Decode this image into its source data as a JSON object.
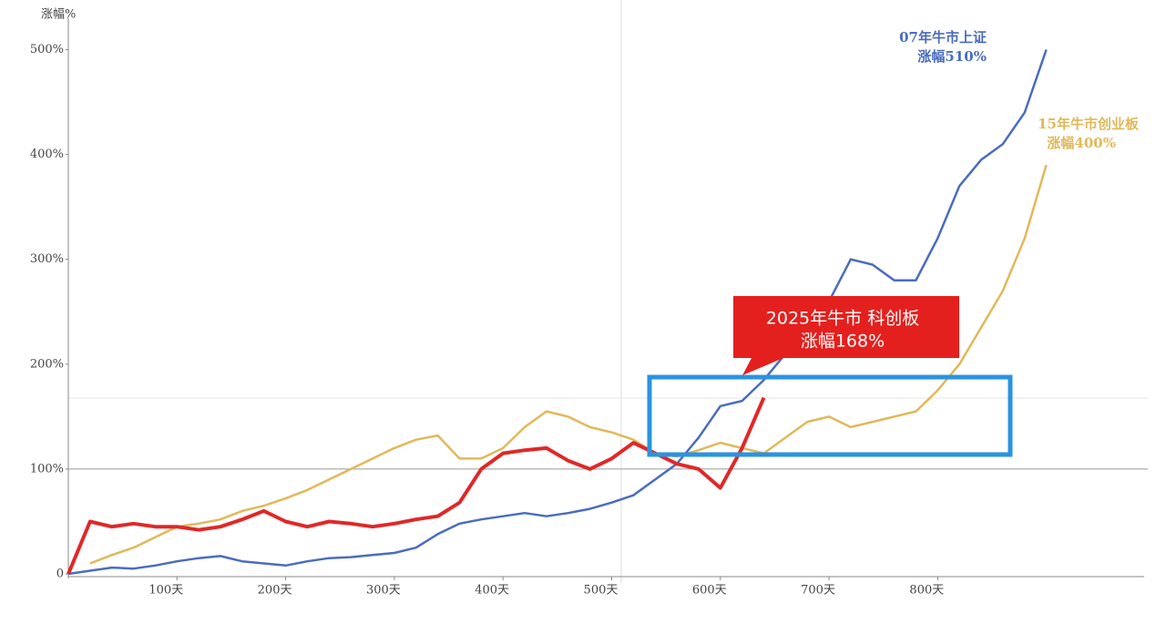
{
  "chart_data": {
    "type": "line",
    "y_label": "涨幅%",
    "x": [
      0,
      20,
      40,
      60,
      80,
      100,
      120,
      140,
      160,
      180,
      200,
      220,
      240,
      260,
      280,
      300,
      320,
      340,
      360,
      380,
      400,
      420,
      440,
      460,
      480,
      500,
      520,
      540,
      560,
      580,
      600,
      620,
      640,
      660,
      680,
      700,
      720,
      740,
      760,
      780,
      800,
      820,
      840,
      860,
      880,
      900
    ],
    "series": [
      {
        "color": "#4a6cc0",
        "values": [
          0,
          3,
          6,
          5,
          8,
          12,
          15,
          17,
          12,
          10,
          8,
          12,
          15,
          16,
          18,
          20,
          25,
          38,
          48,
          52,
          55,
          58,
          55,
          58,
          62,
          68,
          75,
          90,
          105,
          130,
          160,
          165,
          185,
          210,
          230,
          260,
          300,
          295,
          280,
          280,
          320,
          370,
          395,
          410,
          440,
          500
        ]
      },
      {
        "color": "#e0b95a",
        "values": [
          null,
          10,
          18,
          25,
          35,
          45,
          48,
          52,
          60,
          65,
          72,
          80,
          90,
          100,
          110,
          120,
          128,
          132,
          110,
          110,
          120,
          140,
          155,
          150,
          140,
          135,
          128,
          115,
          112,
          118,
          125,
          120,
          115,
          130,
          145,
          150,
          140,
          145,
          150,
          155,
          175,
          200,
          235,
          270,
          320,
          390
        ]
      },
      {
        "color": "#e02828",
        "values": [
          0,
          50,
          45,
          48,
          45,
          45,
          42,
          45,
          52,
          60,
          50,
          45,
          50,
          48,
          45,
          48,
          52,
          55,
          68,
          100,
          115,
          118,
          120,
          108,
          100,
          110,
          125,
          115,
          105,
          100,
          82,
          120,
          168,
          null,
          null,
          null,
          null,
          null,
          null,
          null,
          null,
          null,
          null,
          null,
          null,
          null
        ]
      }
    ],
    "annotations": [
      "07年牛市上证",
      "涨幅510%",
      "15年牛市创业板",
      "涨幅400%",
      "2025年牛市 科创板",
      "涨幅168%"
    ],
    "xlim": [
      0,
      990
    ],
    "ylim": [
      0,
      530
    ],
    "xticks": [
      {
        "value": 100,
        "label": "100天"
      },
      {
        "value": 200,
        "label": "200天"
      },
      {
        "value": 300,
        "label": "300天"
      },
      {
        "value": 400,
        "label": "400天"
      },
      {
        "value": 500,
        "label": "500天"
      },
      {
        "value": 600,
        "label": "600天"
      },
      {
        "value": 700,
        "label": "700天"
      },
      {
        "value": 800,
        "label": "800天"
      }
    ],
    "yticks": [
      0,
      {
        "value": 100,
        "label": "100%"
      },
      {
        "value": 200,
        "label": "200%"
      },
      {
        "value": 300,
        "label": "300%"
      },
      {
        "value": 400,
        "label": "400%"
      },
      {
        "value": 500,
        "label": "500%"
      }
    ]
  }
}
